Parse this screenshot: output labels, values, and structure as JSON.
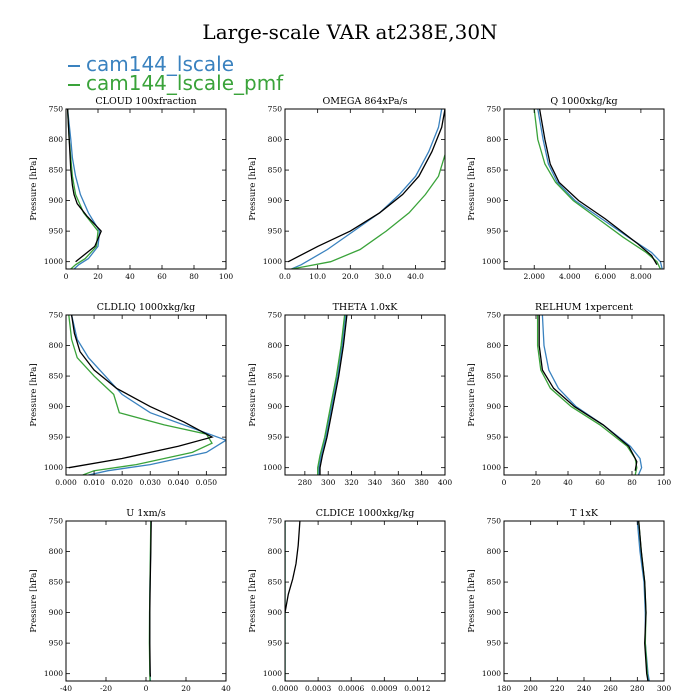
{
  "title": "Large-scale VAR at238E,30N",
  "colors": {
    "blue": "#3a82bf",
    "green": "#3aa33a",
    "black": "#000000"
  },
  "legend": [
    {
      "label": "cam144_lscale",
      "color": "#3a82bf"
    },
    {
      "label": "cam144_lscale_pmf",
      "color": "#3aa33a"
    }
  ],
  "chart_data": [
    {
      "type": "line",
      "title": "CLOUD 100xfraction",
      "ylabel": "Pressure [hPa]",
      "xlim": [
        0,
        100
      ],
      "ylim": [
        750,
        1012
      ],
      "xticks": [
        0,
        20,
        40,
        60,
        80,
        100
      ],
      "xtick_labels": [
        "0",
        "20",
        "40",
        "60",
        "80",
        "100"
      ],
      "yticks": [
        750,
        800,
        850,
        900,
        950,
        1000
      ],
      "ytick_labels": [
        "750",
        "800",
        "850",
        "900",
        "950",
        "1000"
      ],
      "series": [
        {
          "name": "cam144_lscale",
          "color": "blue",
          "x": [
            1,
            2,
            3,
            4,
            6,
            9,
            14,
            21,
            20,
            14,
            8,
            5
          ],
          "y": [
            750,
            775,
            800,
            830,
            860,
            890,
            920,
            950,
            975,
            995,
            1005,
            1012
          ]
        },
        {
          "name": "cam144_lscale_pmf",
          "color": "green",
          "x": [
            1,
            1.5,
            2,
            3,
            4,
            6,
            11,
            20,
            19,
            12,
            6,
            3
          ],
          "y": [
            750,
            775,
            800,
            830,
            860,
            890,
            920,
            950,
            975,
            995,
            1005,
            1012
          ]
        },
        {
          "name": "black",
          "color": "black",
          "x": [
            1,
            2,
            3,
            4,
            5,
            7,
            13,
            22,
            18,
            6
          ],
          "y": [
            750,
            800,
            850,
            875,
            890,
            905,
            925,
            950,
            975,
            1000
          ]
        }
      ]
    },
    {
      "type": "line",
      "title": "OMEGA 864xPa/s",
      "ylabel": "Pressure [hPa]",
      "xlim": [
        0,
        49
      ],
      "ylim": [
        750,
        1012
      ],
      "xticks": [
        0,
        10,
        20,
        30,
        40
      ],
      "xtick_labels": [
        "0.0",
        "10.0",
        "20.0",
        "30.0",
        "40.0"
      ],
      "yticks": [
        750,
        800,
        850,
        900,
        950,
        1000
      ],
      "ytick_labels": [
        "750",
        "800",
        "850",
        "900",
        "950",
        "1000"
      ],
      "series": [
        {
          "name": "cam144_lscale",
          "color": "blue",
          "x": [
            48,
            47,
            44,
            40,
            35,
            29,
            21,
            13,
            5,
            2
          ],
          "y": [
            750,
            780,
            820,
            860,
            890,
            920,
            950,
            980,
            1005,
            1012
          ]
        },
        {
          "name": "cam144_lscale_pmf",
          "color": "green",
          "x": [
            49,
            47,
            43,
            38,
            31,
            23,
            14,
            6,
            2
          ],
          "y": [
            825,
            860,
            890,
            920,
            950,
            980,
            1000,
            1008,
            1012
          ]
        },
        {
          "name": "black",
          "color": "black",
          "x": [
            49,
            48,
            45,
            41,
            36,
            29,
            20,
            10,
            1
          ],
          "y": [
            750,
            780,
            820,
            860,
            890,
            920,
            950,
            975,
            1000
          ]
        }
      ]
    },
    {
      "type": "line",
      "title": "Q 1000xkg/kg",
      "ylabel": "Pressure [hPa]",
      "xlim": [
        0.3,
        9.3
      ],
      "ylim": [
        750,
        1012
      ],
      "xticks": [
        2,
        4,
        6,
        8
      ],
      "xtick_labels": [
        "2.000",
        "4.000",
        "6.000",
        "8.000"
      ],
      "yticks": [
        750,
        800,
        850,
        900,
        950,
        1000
      ],
      "ytick_labels": [
        "750",
        "800",
        "850",
        "900",
        "950",
        "1000"
      ],
      "series": [
        {
          "name": "cam144_lscale",
          "color": "blue",
          "x": [
            2.2,
            2.5,
            2.8,
            3.3,
            4.3,
            5.8,
            7.3,
            8.6,
            9.1,
            9.2
          ],
          "y": [
            750,
            800,
            840,
            870,
            900,
            930,
            960,
            985,
            1000,
            1012
          ]
        },
        {
          "name": "cam144_lscale_pmf",
          "color": "green",
          "x": [
            2.0,
            2.2,
            2.6,
            3.2,
            4.2,
            5.6,
            7.0,
            8.3,
            8.9,
            9.1
          ],
          "y": [
            750,
            800,
            840,
            870,
            900,
            930,
            960,
            985,
            1000,
            1012
          ]
        },
        {
          "name": "black",
          "color": "black",
          "x": [
            2.3,
            2.6,
            2.9,
            3.4,
            4.5,
            6.0,
            7.8,
            8.6,
            8.9
          ],
          "y": [
            750,
            800,
            840,
            870,
            900,
            930,
            970,
            990,
            1005
          ]
        }
      ]
    },
    {
      "type": "line",
      "title": "CLDLIQ 1000xkg/kg",
      "ylabel": "Pressure [hPa]",
      "xlim": [
        0,
        0.057
      ],
      "ylim": [
        750,
        1012
      ],
      "xticks": [
        0,
        0.01,
        0.02,
        0.03,
        0.04,
        0.05
      ],
      "xtick_labels": [
        "0.000",
        "0.010",
        "0.020",
        "0.030",
        "0.040",
        "0.050"
      ],
      "yticks": [
        750,
        800,
        850,
        900,
        950,
        1000
      ],
      "ytick_labels": [
        "750",
        "800",
        "850",
        "900",
        "950",
        "1000"
      ],
      "series": [
        {
          "name": "cam144_lscale",
          "color": "blue",
          "x": [
            0.002,
            0.004,
            0.008,
            0.014,
            0.02,
            0.03,
            0.045,
            0.057,
            0.05,
            0.03,
            0.015,
            0.008
          ],
          "y": [
            750,
            790,
            820,
            850,
            880,
            910,
            935,
            955,
            975,
            995,
            1005,
            1012
          ]
        },
        {
          "name": "cam144_lscale_pmf",
          "color": "green",
          "x": [
            0.001,
            0.002,
            0.004,
            0.01,
            0.017,
            0.019,
            0.035,
            0.05,
            0.052,
            0.045,
            0.025,
            0.01,
            0.006
          ],
          "y": [
            750,
            790,
            820,
            850,
            880,
            910,
            930,
            945,
            960,
            975,
            995,
            1005,
            1012
          ]
        },
        {
          "name": "black",
          "color": "black",
          "x": [
            0.002,
            0.003,
            0.005,
            0.01,
            0.018,
            0.03,
            0.042,
            0.052,
            0.04,
            0.02,
            0.001
          ],
          "y": [
            750,
            780,
            810,
            840,
            870,
            900,
            925,
            950,
            965,
            985,
            1000
          ]
        }
      ]
    },
    {
      "type": "line",
      "title": "THETA 1.0xK",
      "ylabel": "Pressure [hPa]",
      "xlim": [
        263,
        400
      ],
      "ylim": [
        750,
        1012
      ],
      "xticks": [
        280,
        300,
        320,
        340,
        360,
        380,
        400
      ],
      "xtick_labels": [
        "280",
        "300",
        "320",
        "340",
        "360",
        "380",
        "400"
      ],
      "yticks": [
        750,
        800,
        850,
        900,
        950,
        1000
      ],
      "ytick_labels": [
        "750",
        "800",
        "850",
        "900",
        "950",
        "1000"
      ],
      "series": [
        {
          "name": "cam144_lscale",
          "color": "blue",
          "x": [
            315,
            312,
            308,
            303,
            298,
            294,
            292,
            292
          ],
          "y": [
            750,
            800,
            850,
            900,
            950,
            980,
            1000,
            1012
          ]
        },
        {
          "name": "cam144_lscale_pmf",
          "color": "green",
          "x": [
            314,
            311,
            307,
            302,
            297,
            293,
            291,
            291
          ],
          "y": [
            750,
            800,
            850,
            900,
            950,
            980,
            1000,
            1012
          ]
        },
        {
          "name": "black",
          "color": "black",
          "x": [
            316,
            313,
            309,
            304,
            299,
            295,
            293,
            293
          ],
          "y": [
            750,
            800,
            850,
            900,
            950,
            980,
            1000,
            1012
          ]
        }
      ]
    },
    {
      "type": "line",
      "title": "RELHUM 1xpercent",
      "ylabel": "Pressure [hPa]",
      "xlim": [
        0,
        100
      ],
      "ylim": [
        750,
        1012
      ],
      "xticks": [
        0,
        20,
        40,
        60,
        80,
        100
      ],
      "xtick_labels": [
        "0",
        "20",
        "40",
        "60",
        "80",
        "100"
      ],
      "yticks": [
        750,
        800,
        850,
        900,
        950,
        1000
      ],
      "ytick_labels": [
        "750",
        "800",
        "850",
        "900",
        "950",
        "1000"
      ],
      "series": [
        {
          "name": "cam144_lscale",
          "color": "blue",
          "x": [
            24,
            25,
            28,
            34,
            45,
            62,
            79,
            85,
            86,
            84
          ],
          "y": [
            750,
            800,
            840,
            870,
            900,
            930,
            965,
            985,
            1000,
            1012
          ]
        },
        {
          "name": "cam144_lscale_pmf",
          "color": "green",
          "x": [
            21,
            21,
            23,
            29,
            42,
            60,
            77,
            82,
            83,
            82
          ],
          "y": [
            750,
            800,
            840,
            870,
            900,
            930,
            965,
            985,
            1000,
            1012
          ]
        },
        {
          "name": "black",
          "color": "black",
          "x": [
            22,
            22,
            24,
            31,
            44,
            62,
            78,
            83,
            82
          ],
          "y": [
            750,
            800,
            840,
            870,
            900,
            930,
            965,
            990,
            1005
          ]
        }
      ]
    },
    {
      "type": "line",
      "title": "U 1xm/s",
      "ylabel": "Pressure [hPa]",
      "xlim": [
        -40,
        40
      ],
      "ylim": [
        750,
        1012
      ],
      "xticks": [
        -40,
        -20,
        0,
        20,
        40
      ],
      "xtick_labels": [
        "-40",
        "-20",
        "0",
        "20",
        "40"
      ],
      "yticks": [
        750,
        800,
        850,
        900,
        950,
        1000
      ],
      "ytick_labels": [
        "750",
        "800",
        "850",
        "900",
        "950",
        "1000"
      ],
      "series": [
        {
          "name": "cam144_lscale",
          "color": "blue",
          "x": [
            2.5,
            2.3,
            2.0,
            1.8,
            1.8,
            2.0,
            2.2
          ],
          "y": [
            750,
            800,
            850,
            900,
            950,
            1000,
            1012
          ]
        },
        {
          "name": "cam144_lscale_pmf",
          "color": "green",
          "x": [
            2.4,
            2.2,
            2.0,
            1.8,
            1.7,
            1.9,
            2.0
          ],
          "y": [
            750,
            800,
            850,
            900,
            950,
            1000,
            1012
          ]
        },
        {
          "name": "black",
          "color": "black",
          "x": [
            2.6,
            2.4,
            2.1,
            1.9,
            1.9,
            2.1,
            2.2
          ],
          "y": [
            750,
            800,
            850,
            900,
            950,
            1000,
            1005
          ]
        }
      ]
    },
    {
      "type": "line",
      "title": "CLDICE 1000xkg/kg",
      "ylabel": "Pressure [hPa]",
      "xlim": [
        0,
        0.00145
      ],
      "ylim": [
        750,
        1012
      ],
      "xticks": [
        0,
        0.0003,
        0.0006,
        0.0009,
        0.0012
      ],
      "xtick_labels": [
        "0.0000",
        "0.0003",
        "0.0006",
        "0.0009",
        "0.0012"
      ],
      "yticks": [
        750,
        800,
        850,
        900,
        950,
        1000
      ],
      "ytick_labels": [
        "750",
        "800",
        "850",
        "900",
        "950",
        "1000"
      ],
      "series": [
        {
          "name": "cam144_lscale",
          "color": "blue",
          "x": [
            0,
            0
          ],
          "y": [
            750,
            1012
          ]
        },
        {
          "name": "cam144_lscale_pmf",
          "color": "green",
          "x": [
            0,
            0
          ],
          "y": [
            750,
            1012
          ]
        },
        {
          "name": "black",
          "color": "black",
          "x": [
            0.000135,
            0.00012,
            0.0001,
            7e-05,
            3e-05,
            0
          ],
          "y": [
            750,
            790,
            820,
            845,
            870,
            900
          ]
        }
      ]
    },
    {
      "type": "line",
      "title": "T 1xK",
      "ylabel": "Pressure [hPa]",
      "xlim": [
        180,
        300
      ],
      "ylim": [
        750,
        1012
      ],
      "xticks": [
        180,
        200,
        220,
        240,
        260,
        280,
        300
      ],
      "xtick_labels": [
        "180",
        "200",
        "220",
        "240",
        "260",
        "280",
        "300"
      ],
      "yticks": [
        750,
        800,
        850,
        900,
        950,
        1000
      ],
      "ytick_labels": [
        "750",
        "800",
        "850",
        "900",
        "950",
        "1000"
      ],
      "series": [
        {
          "name": "cam144_lscale",
          "color": "blue",
          "x": [
            280,
            282,
            285,
            286,
            286,
            288,
            289
          ],
          "y": [
            750,
            800,
            850,
            900,
            950,
            1000,
            1012
          ]
        },
        {
          "name": "cam144_lscale_pmf",
          "color": "green",
          "x": [
            281,
            283,
            285.5,
            286.5,
            286,
            287.5,
            288
          ],
          "y": [
            750,
            800,
            850,
            900,
            950,
            1000,
            1012
          ]
        },
        {
          "name": "black",
          "color": "black",
          "x": [
            281,
            283,
            285.5,
            286.5,
            285.5,
            287,
            288
          ],
          "y": [
            750,
            800,
            850,
            900,
            950,
            1000,
            1012
          ]
        }
      ]
    }
  ]
}
